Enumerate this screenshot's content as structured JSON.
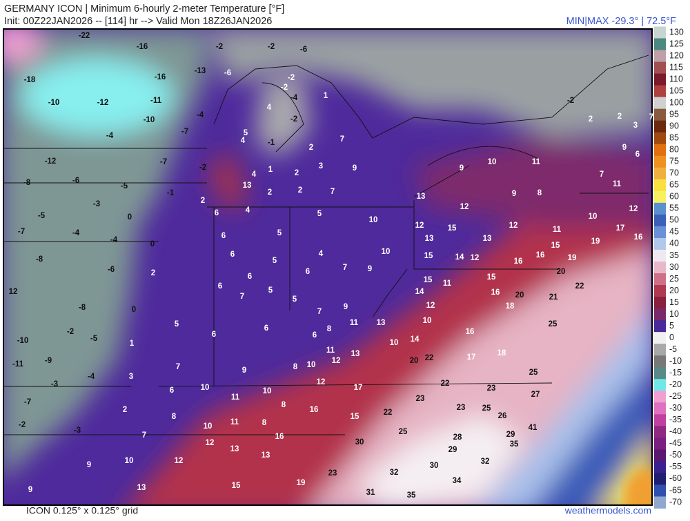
{
  "header": {
    "title": "GERMANY ICON | Minimum 6-hourly 2-meter Temperature [°F]",
    "init": "Init: 00Z22JAN2026 -- [114] hr --> Valid Mon 18Z26JAN2026",
    "minmax": "MIN|MAX -29.3° | 72.5°F"
  },
  "footer": {
    "grid": "ICON 0.125° x 0.125° grid",
    "site": "weathermodels.com"
  },
  "map_labels": [
    -22,
    -16,
    -2,
    -2,
    -6,
    -18,
    -16,
    -13,
    -6,
    -2,
    -2,
    -10,
    -12,
    -11,
    -4,
    1,
    -2,
    -10,
    -4,
    4,
    -2,
    2,
    2,
    3,
    7,
    -7,
    -4,
    5,
    4,
    -1,
    2,
    7,
    9,
    6,
    -12,
    -7,
    -2,
    4,
    1,
    2,
    3,
    9,
    9,
    10,
    11,
    7,
    -8,
    -6,
    -5,
    -1,
    13,
    2,
    2,
    7,
    9,
    8,
    11,
    -3,
    2,
    6,
    4,
    5,
    13,
    12,
    12,
    -5,
    0,
    10,
    10,
    -7,
    -4,
    -4,
    6,
    5,
    12,
    15,
    12,
    11,
    17,
    0,
    13,
    13,
    15,
    19,
    16,
    -8,
    6,
    5,
    4,
    10,
    7,
    9,
    15,
    14,
    12,
    16,
    16,
    19,
    -6,
    2,
    6,
    6,
    20,
    22,
    12,
    6,
    7,
    5,
    15,
    11,
    15,
    14,
    16,
    20,
    21,
    -8,
    5,
    7,
    9,
    12,
    18,
    0,
    5,
    11,
    13,
    10,
    25,
    8,
    6,
    -2,
    6,
    6,
    16,
    -10,
    -5,
    1,
    10,
    14,
    11,
    13,
    18,
    -11,
    -9,
    7,
    12,
    20,
    22,
    17,
    -4,
    9,
    8,
    10,
    25,
    3,
    -3,
    12,
    22,
    23,
    10,
    17,
    6,
    11,
    10,
    27,
    -7,
    8,
    23,
    23,
    25,
    2,
    16,
    22,
    26,
    8,
    -2,
    11,
    8,
    15,
    10,
    -3,
    41,
    7,
    16,
    25,
    28,
    29,
    30,
    12,
    13,
    35,
    29,
    13,
    9,
    10,
    12,
    32,
    30,
    23,
    32,
    19,
    34,
    9,
    13,
    15,
    31,
    35
  ],
  "colorbar": {
    "ticks": [
      130,
      125,
      120,
      115,
      110,
      105,
      100,
      95,
      90,
      85,
      80,
      75,
      70,
      65,
      60,
      55,
      50,
      45,
      40,
      35,
      30,
      25,
      20,
      15,
      10,
      5,
      0,
      -5,
      -10,
      -15,
      -20,
      -25,
      -30,
      -35,
      -40,
      -45,
      -50,
      -55,
      -60,
      -65,
      -70
    ],
    "colors": [
      "#c8d4d0",
      "#4a8a80",
      "#c0a0a8",
      "#a05050",
      "#7a1a2a",
      "#b04040",
      "#d0d0d0",
      "#8a5a40",
      "#6a2a10",
      "#a04a10",
      "#e07010",
      "#f09020",
      "#f0b040",
      "#f8e040",
      "#f8f060",
      "#5a90d0",
      "#3a60b8",
      "#6a90d8",
      "#b0c8ec",
      "#f0e8f0",
      "#e8b8c8",
      "#d07088",
      "#b03850",
      "#8a2040",
      "#7a2a6a",
      "#4a2a9a",
      "#f0f0f0",
      "#a8a8a8",
      "#787878",
      "#5a8a88",
      "#70e8e8",
      "#f0a0d0",
      "#e070c0",
      "#c040a0",
      "#902a80",
      "#7a2080",
      "#5a1870",
      "#3a2090",
      "#202070",
      "#3050b0",
      "#90a8d0"
    ]
  }
}
